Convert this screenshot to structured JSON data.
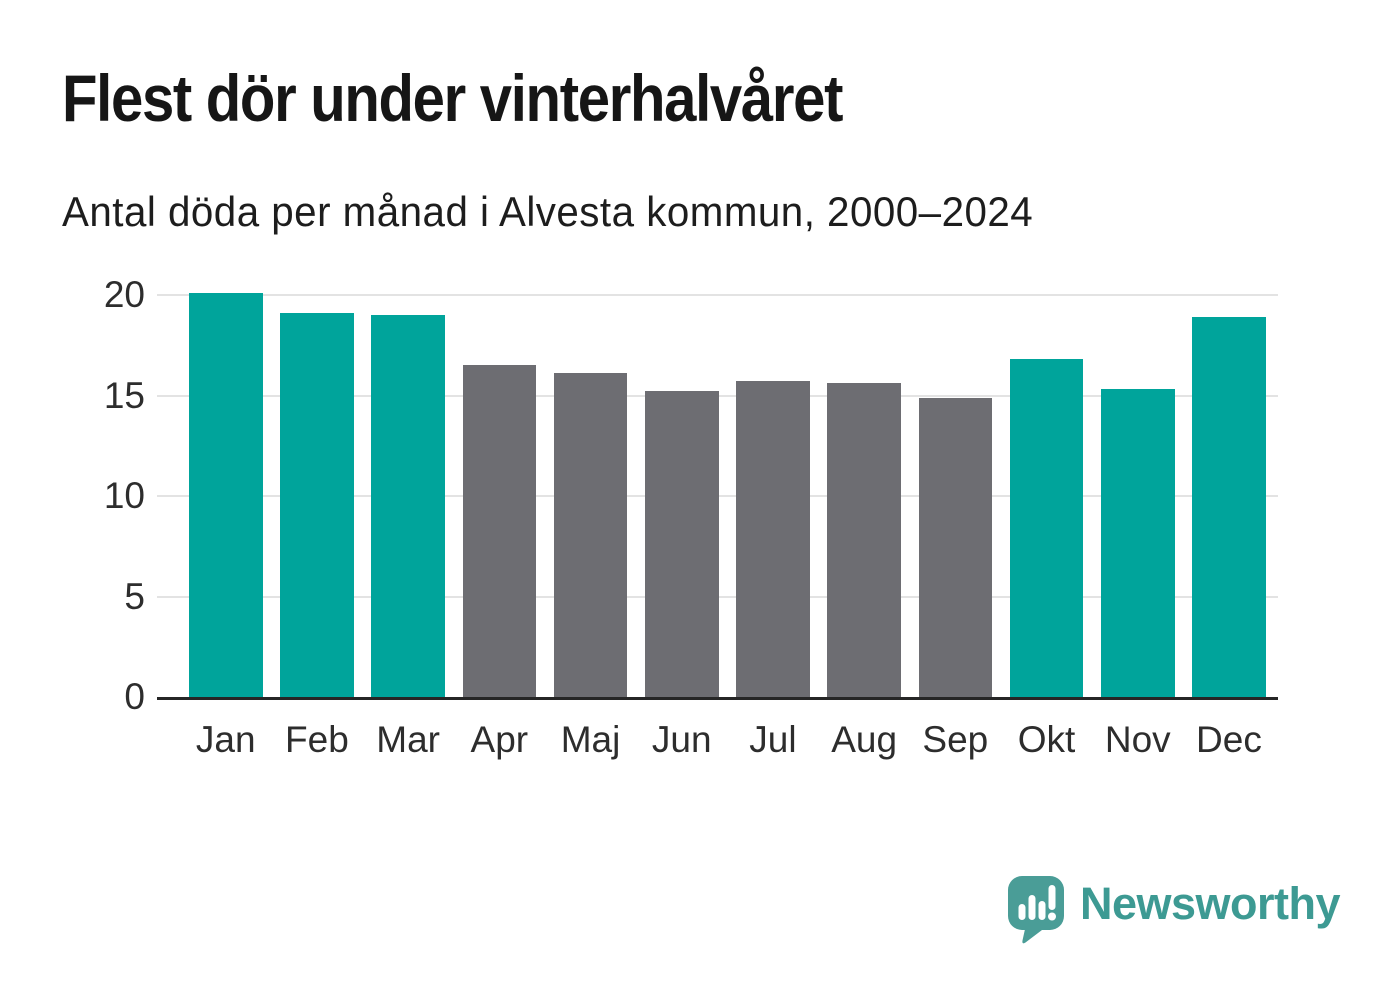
{
  "header": {
    "title": "Flest dör under vinterhalvåret",
    "subtitle": "Antal döda per månad i Alvesta kommun, 2000–2024"
  },
  "brand": {
    "name": "Newsworthy",
    "icon": "speech-bubble-bar-chart-icon",
    "text_color": "#3d9a93",
    "icon_color": "#4a9d97"
  },
  "chart_data": {
    "type": "bar",
    "title": "Flest dör under vinterhalvåret",
    "subtitle": "Antal döda per månad i Alvesta kommun, 2000–2024",
    "categories": [
      "Jan",
      "Feb",
      "Mar",
      "Apr",
      "Maj",
      "Jun",
      "Jul",
      "Aug",
      "Sep",
      "Okt",
      "Nov",
      "Dec"
    ],
    "values": [
      20.1,
      19.1,
      19.0,
      16.5,
      16.1,
      15.2,
      15.7,
      15.6,
      14.9,
      16.8,
      15.3,
      18.9
    ],
    "bar_color_keys": [
      "winter",
      "winter",
      "winter",
      "summer",
      "summer",
      "summer",
      "summer",
      "summer",
      "summer",
      "winter",
      "winter",
      "winter"
    ],
    "palette": {
      "winter": "#00a49b",
      "summer": "#6d6d72"
    },
    "xlabel": "",
    "ylabel": "",
    "yticks": [
      0,
      5,
      10,
      15,
      20
    ],
    "ylim": [
      0,
      20.5
    ],
    "grid": "horizontal",
    "gridline_color": "#e3e3e3",
    "axis_line_color": "#262626",
    "legend": "none"
  }
}
